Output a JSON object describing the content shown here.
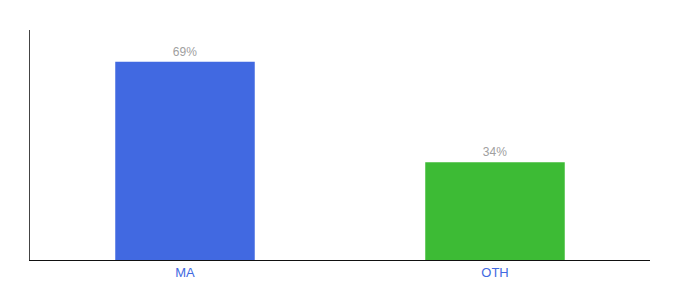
{
  "chart_data": {
    "type": "bar",
    "categories": [
      "MA",
      "OTH"
    ],
    "values": [
      69,
      34
    ],
    "value_labels": [
      "69%",
      "34%"
    ],
    "colors": [
      "#4169e1",
      "#3dbb35"
    ],
    "ylim": [
      0,
      80
    ],
    "grid": false,
    "data_labels": true,
    "tick_labels": "x"
  }
}
